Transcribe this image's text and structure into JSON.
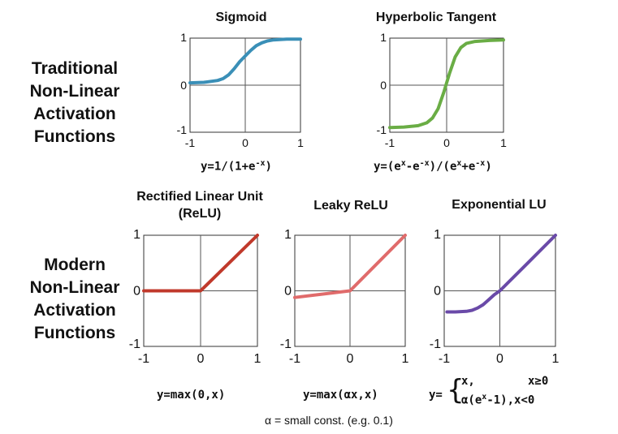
{
  "sections": {
    "traditional": [
      "Traditional",
      "Non-Linear",
      "Activation",
      "Functions"
    ],
    "modern": [
      "Modern",
      "Non-Linear",
      "Activation",
      "Functions"
    ]
  },
  "titles": {
    "sigmoid": "Sigmoid",
    "tanh": "Hyperbolic Tangent",
    "relu_line1": "Rectified Linear Unit",
    "relu_line2": "(ReLU)",
    "leaky": "Leaky ReLU",
    "elu": "Exponential LU"
  },
  "formulas": {
    "sigmoid": {
      "a": "y=1/(1+e",
      "sup": "-x",
      "b": ")"
    },
    "tanh": {
      "a": "y=(e",
      "s1": "x",
      "b": "-e",
      "s2": "-x",
      "c": ")/(e",
      "s3": "x",
      "d": "+e",
      "s4": "-x",
      "e": ")"
    },
    "relu": "y=max(0,x)",
    "leaky": "y=max(αx,x)",
    "elu": {
      "prefix": "y=",
      "brace": "{",
      "line1a": "x,",
      "line1b": "x≥0",
      "line2a": "α(e",
      "line2sup": "x",
      "line2b": "-1),x<0"
    }
  },
  "note": "α = small const. (e.g. 0.1)",
  "chart_data": [
    {
      "id": "sigmoid",
      "type": "line",
      "title": "Sigmoid",
      "color": "#3a8fb7",
      "xlim": [
        -1,
        1
      ],
      "ylim": [
        -1,
        1
      ],
      "xticks": [
        "-1",
        "0",
        "1"
      ],
      "yticks": [
        "1",
        "0",
        "-1"
      ],
      "x": [
        -1,
        -0.75,
        -0.5,
        -0.4,
        -0.3,
        -0.2,
        -0.1,
        0,
        0.1,
        0.2,
        0.3,
        0.4,
        0.5,
        0.75,
        1
      ],
      "y": [
        0.05,
        0.06,
        0.1,
        0.14,
        0.22,
        0.35,
        0.5,
        0.62,
        0.74,
        0.84,
        0.9,
        0.94,
        0.96,
        0.98,
        0.98
      ]
    },
    {
      "id": "tanh",
      "type": "line",
      "title": "Hyperbolic Tangent",
      "color": "#6aad45",
      "xlim": [
        -1,
        1
      ],
      "ylim": [
        -1,
        1
      ],
      "xticks": [
        "-1",
        "0",
        "1"
      ],
      "yticks": [
        "1",
        "0",
        "-1"
      ],
      "x": [
        -1,
        -0.75,
        -0.5,
        -0.35,
        -0.25,
        -0.15,
        -0.05,
        0,
        0.05,
        0.15,
        0.25,
        0.35,
        0.5,
        0.75,
        1
      ],
      "y": [
        -0.9,
        -0.89,
        -0.86,
        -0.8,
        -0.7,
        -0.5,
        -0.15,
        0.05,
        0.25,
        0.6,
        0.8,
        0.89,
        0.93,
        0.95,
        0.96
      ]
    },
    {
      "id": "relu",
      "type": "line",
      "title": "Rectified Linear Unit (ReLU)",
      "color": "#c0392b",
      "xlim": [
        -1,
        1
      ],
      "ylim": [
        -1,
        1
      ],
      "xticks": [
        "-1",
        "0",
        "1"
      ],
      "yticks": [
        "1",
        "0",
        "-1"
      ],
      "x": [
        -1,
        0,
        1
      ],
      "y": [
        0,
        0,
        1
      ]
    },
    {
      "id": "leaky",
      "type": "line",
      "title": "Leaky ReLU",
      "color": "#e06b6b",
      "xlim": [
        -1,
        1
      ],
      "ylim": [
        -1,
        1
      ],
      "xticks": [
        "-1",
        "0",
        "1"
      ],
      "yticks": [
        "1",
        "0",
        "-1"
      ],
      "x": [
        -1,
        0,
        1
      ],
      "y": [
        -0.12,
        0,
        1
      ]
    },
    {
      "id": "elu",
      "type": "line",
      "title": "Exponential LU",
      "color": "#6a4aa8",
      "xlim": [
        -1,
        1
      ],
      "ylim": [
        -1,
        1
      ],
      "xticks": [
        "-1",
        "0",
        "1"
      ],
      "yticks": [
        "1",
        "0",
        "-1"
      ],
      "x": [
        -0.95,
        -0.8,
        -0.6,
        -0.5,
        -0.4,
        -0.3,
        -0.2,
        -0.1,
        0,
        0.5,
        1
      ],
      "y": [
        -0.38,
        -0.38,
        -0.37,
        -0.35,
        -0.31,
        -0.25,
        -0.16,
        -0.07,
        0,
        0.5,
        1
      ]
    }
  ]
}
